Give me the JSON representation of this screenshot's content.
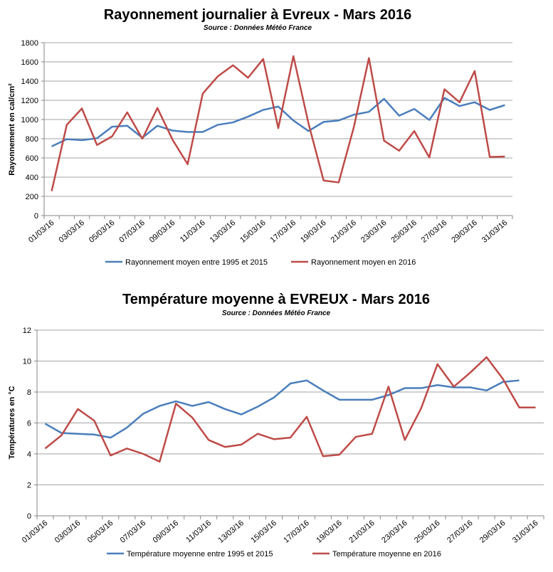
{
  "chart_data": [
    {
      "type": "line",
      "title": "Rayonnement journalier à Evreux - Mars 2016",
      "subtitle": "Source : Données Météo France",
      "xlabel": "",
      "ylabel": "Rayonnement en cal/cm²",
      "ylim": [
        0,
        1800
      ],
      "yticks": [
        0,
        200,
        400,
        600,
        800,
        1000,
        1200,
        1400,
        1600,
        1800
      ],
      "tick_labels": [
        "01/03/16",
        "03/03/16",
        "05/03/16",
        "07/03/16",
        "09/03/16",
        "11/03/16",
        "13/03/16",
        "15/03/16",
        "17/03/16",
        "19/03/16",
        "21/03/16",
        "23/03/16",
        "25/03/16",
        "27/03/16",
        "29/03/16",
        "31/03/16"
      ],
      "categories": [
        "01/03/16",
        "02/03/16",
        "03/03/16",
        "04/03/16",
        "05/03/16",
        "06/03/16",
        "07/03/16",
        "08/03/16",
        "09/03/16",
        "10/03/16",
        "11/03/16",
        "12/03/16",
        "13/03/16",
        "14/03/16",
        "15/03/16",
        "16/03/16",
        "17/03/16",
        "18/03/16",
        "19/03/16",
        "20/03/16",
        "21/03/16",
        "22/03/16",
        "23/03/16",
        "24/03/16",
        "25/03/16",
        "26/03/16",
        "27/03/16",
        "28/03/16",
        "29/03/16",
        "30/03/16",
        "31/03/16"
      ],
      "grid": "horizontal",
      "legend_position": "bottom",
      "series": [
        {
          "name": "Rayonnement moyen entre 1995 et 2015",
          "color": "#4a7ebb",
          "values": [
            720,
            795,
            785,
            805,
            925,
            935,
            810,
            935,
            885,
            870,
            870,
            945,
            970,
            1030,
            1100,
            1135,
            990,
            880,
            975,
            990,
            1050,
            1080,
            1215,
            1040,
            1110,
            995,
            1225,
            1140,
            1180,
            1100,
            1150
          ]
        },
        {
          "name": "Rayonnement moyen en 2016",
          "color": "#be4b48",
          "values": [
            255,
            945,
            1115,
            735,
            825,
            1075,
            800,
            1120,
            790,
            535,
            1270,
            1450,
            1565,
            1435,
            1630,
            910,
            1660,
            960,
            365,
            345,
            920,
            1640,
            780,
            675,
            880,
            605,
            1315,
            1180,
            1505,
            610,
            615
          ]
        }
      ]
    },
    {
      "type": "line",
      "title": "Température moyenne à EVREUX - Mars 2016",
      "subtitle": "Source : Données Météo France",
      "xlabel": "",
      "ylabel": "Températures en °C",
      "ylim": [
        0,
        12
      ],
      "yticks": [
        0,
        2,
        4,
        6,
        8,
        10,
        12
      ],
      "tick_labels": [
        "01/03/16",
        "03/03/16",
        "05/03/16",
        "07/03/16",
        "09/03/16",
        "11/03/16",
        "13/03/16",
        "15/03/16",
        "17/03/16",
        "19/03/16",
        "21/03/16",
        "23/03/16",
        "25/03/16",
        "27/03/16",
        "29/03/16",
        "31/03/16"
      ],
      "categories": [
        "01/03/16",
        "02/03/16",
        "03/03/16",
        "04/03/16",
        "05/03/16",
        "06/03/16",
        "07/03/16",
        "08/03/16",
        "09/03/16",
        "10/03/16",
        "11/03/16",
        "12/03/16",
        "13/03/16",
        "14/03/16",
        "15/03/16",
        "16/03/16",
        "17/03/16",
        "18/03/16",
        "19/03/16",
        "20/03/16",
        "21/03/16",
        "22/03/16",
        "23/03/16",
        "24/03/16",
        "25/03/16",
        "26/03/16",
        "27/03/16",
        "28/03/16",
        "29/03/16",
        "30/03/16",
        "31/03/16"
      ],
      "grid": "horizontal",
      "legend_position": "bottom",
      "series": [
        {
          "name": "Température moyenne entre 1995 et 2015",
          "color": "#4a7ebb",
          "values": [
            5.95,
            5.35,
            5.3,
            5.25,
            5.05,
            5.7,
            6.6,
            7.1,
            7.4,
            7.1,
            7.35,
            6.9,
            6.55,
            7.05,
            7.65,
            8.55,
            8.75,
            8.1,
            7.5,
            7.5,
            7.5,
            7.8,
            8.25,
            8.25,
            8.45,
            8.3,
            8.3,
            8.1,
            8.65,
            8.75,
            null
          ]
        },
        {
          "name": "Température moyenne en 2016",
          "color": "#be4b48",
          "values": [
            4.35,
            5.2,
            6.9,
            6.15,
            3.9,
            4.35,
            4.0,
            3.5,
            7.25,
            6.35,
            4.9,
            4.45,
            4.6,
            5.3,
            4.95,
            5.05,
            6.4,
            3.85,
            3.95,
            5.1,
            5.3,
            8.35,
            4.9,
            6.95,
            9.8,
            8.35,
            9.25,
            10.25,
            8.85,
            7.0,
            7.0
          ]
        }
      ]
    }
  ]
}
